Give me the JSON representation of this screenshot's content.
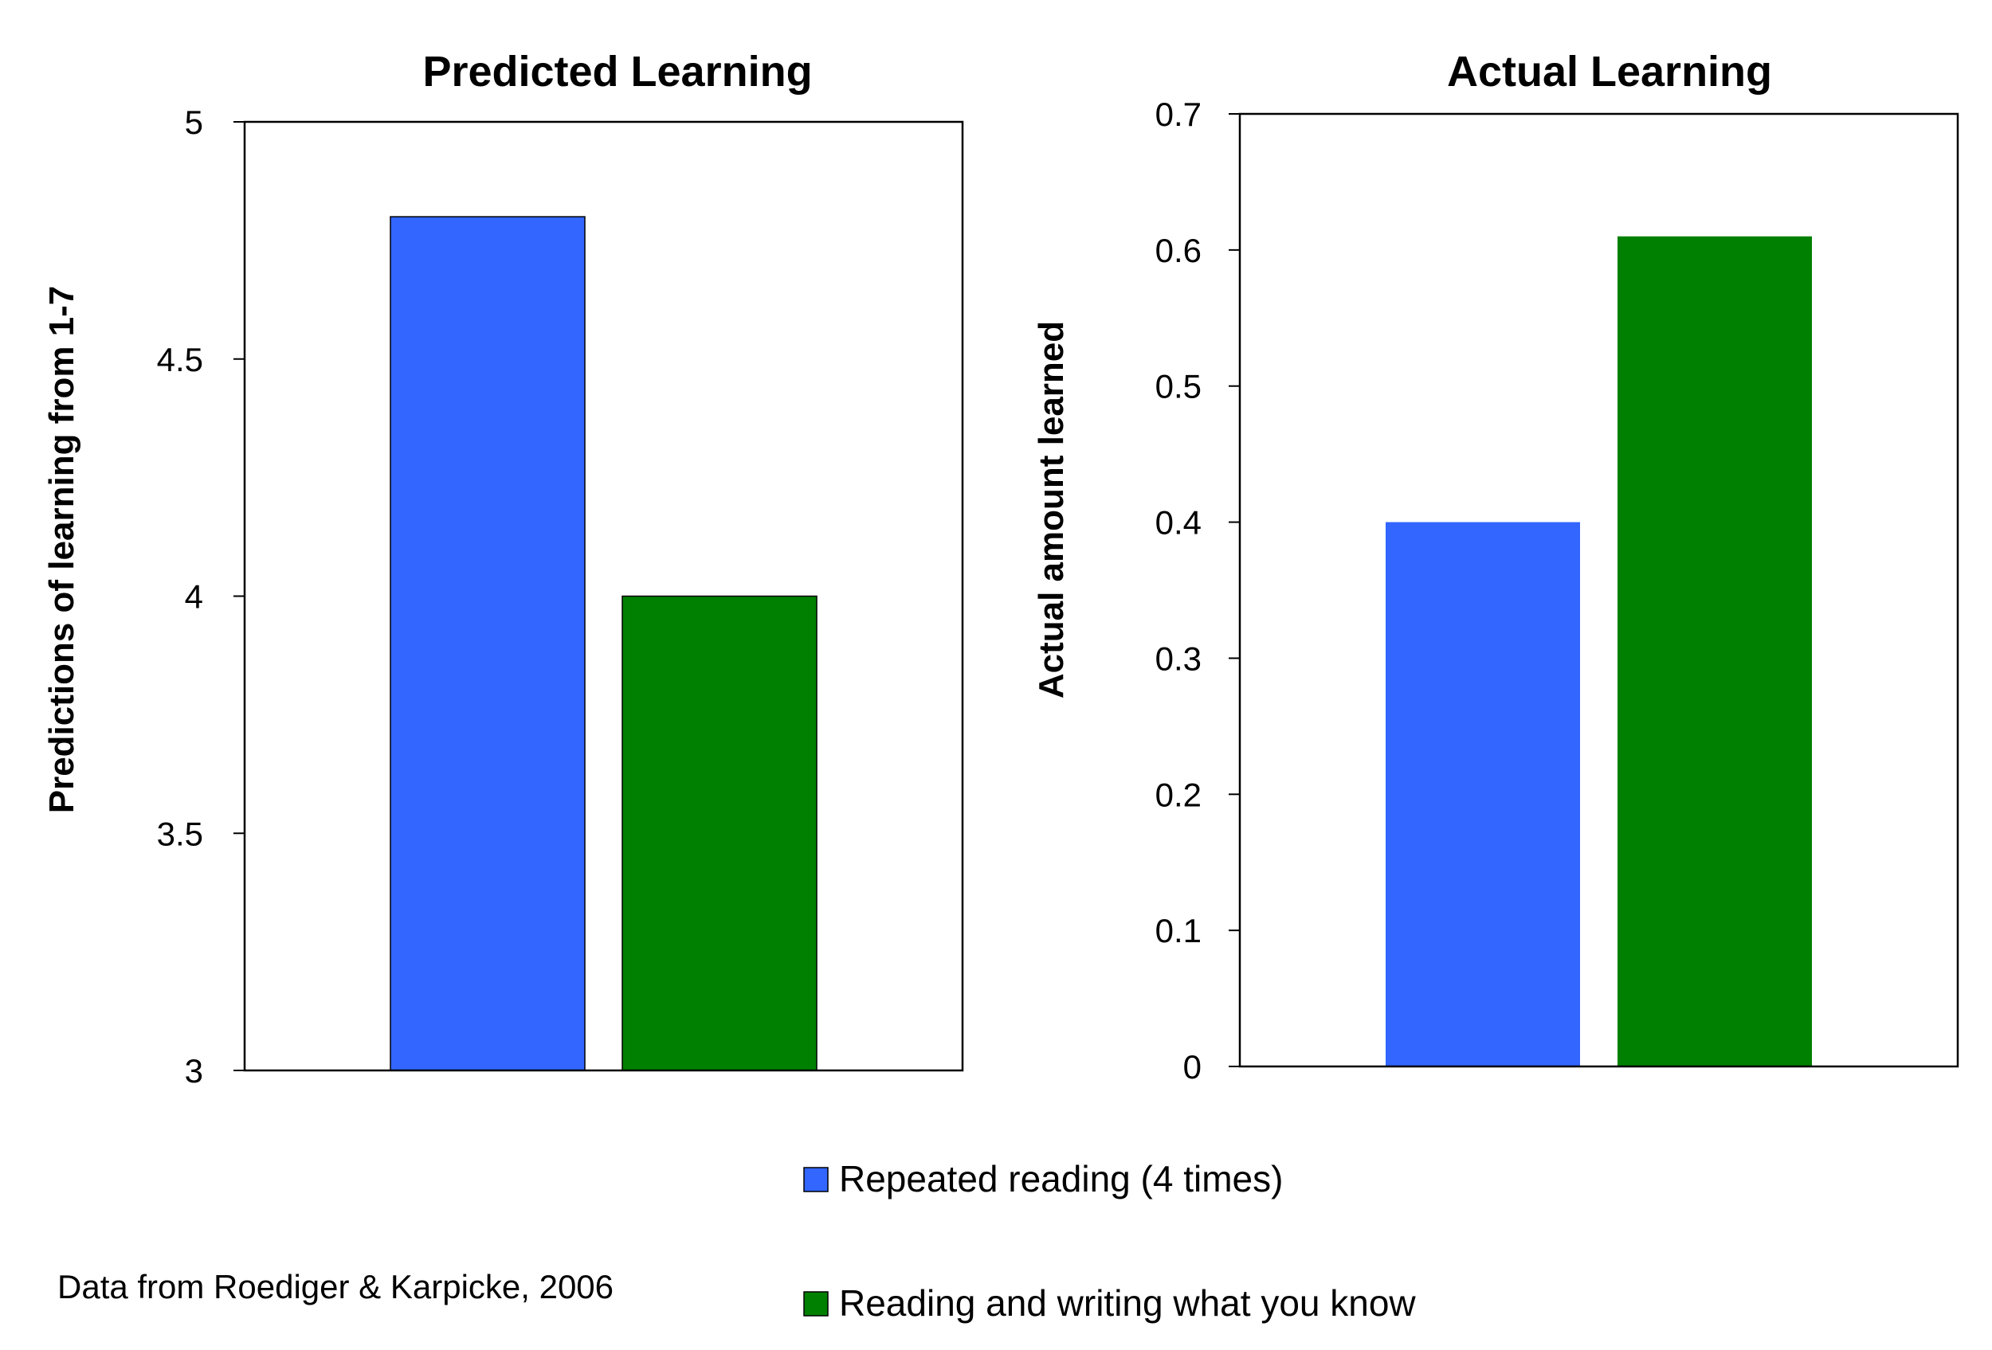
{
  "colors": {
    "repeated": "#3366ff",
    "writing": "#008000",
    "frame": "#000000"
  },
  "legend": {
    "entries": [
      {
        "label": "Repeated reading (4 times)",
        "color_key": "repeated"
      },
      {
        "label": "Reading and writing what you know",
        "color_key": "writing"
      }
    ]
  },
  "source_note": "Data from Roediger & Karpicke, 2006",
  "chart_data": [
    {
      "type": "bar",
      "title": "Predicted Learning",
      "xlabel": "",
      "ylabel": "Predictions of learning from 1-7",
      "ylim": [
        3,
        5
      ],
      "yticks": [
        3,
        3.5,
        4,
        4.5,
        5
      ],
      "ytick_labels": [
        "3",
        "3.5",
        "4",
        "4.5",
        "5"
      ],
      "grid": false,
      "legend_position": "bottom",
      "series": [
        {
          "name": "Repeated reading (4 times)",
          "values": [
            4.8
          ],
          "color_key": "repeated"
        },
        {
          "name": "Reading and writing what you know",
          "values": [
            4.0
          ],
          "color_key": "writing"
        }
      ]
    },
    {
      "type": "bar",
      "title": "Actual Learning",
      "xlabel": "",
      "ylabel": "Actual amount learned",
      "ylim": [
        0,
        0.7
      ],
      "yticks": [
        0,
        0.1,
        0.2,
        0.3,
        0.4,
        0.5,
        0.6,
        0.7
      ],
      "ytick_labels": [
        "0",
        "0.1",
        "0.2",
        "0.3",
        "0.4",
        "0.5",
        "0.6",
        "0.7"
      ],
      "grid": false,
      "legend_position": "bottom",
      "series": [
        {
          "name": "Repeated reading (4 times)",
          "values": [
            0.4
          ],
          "color_key": "repeated"
        },
        {
          "name": "Reading and writing what you know",
          "values": [
            0.61
          ],
          "color_key": "writing"
        }
      ]
    }
  ]
}
